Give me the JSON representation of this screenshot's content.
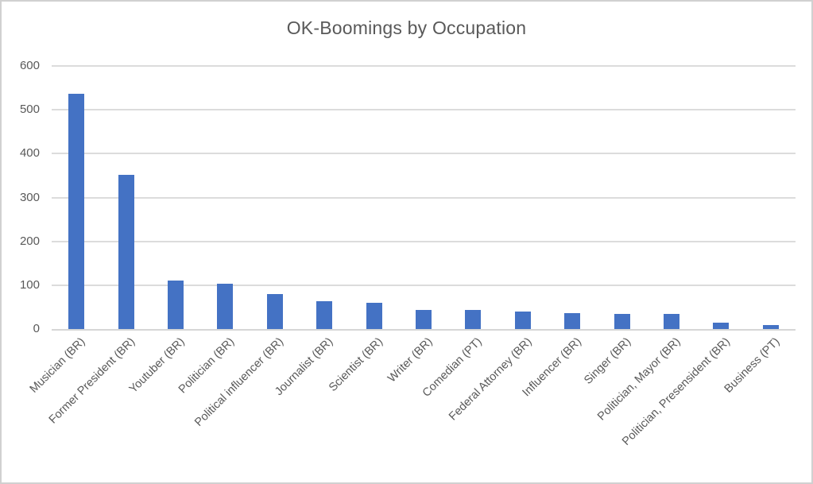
{
  "window": {
    "background": "#ffffff",
    "border_color": "#d0d0d0"
  },
  "chart_data": {
    "type": "bar",
    "title": "OK-Boomings by Occupation",
    "categories": [
      "Musician (BR)",
      "Former President (BR)",
      "Youtuber (BR)",
      "Politician (BR)",
      "Political influencer (BR)",
      "Journalist (BR)",
      "Scientist (BR)",
      "Writer (BR)",
      "Comedian (PT)",
      "Federal Attorney (BR)",
      "Influencer (BR)",
      "Singer (BR)",
      "Politician, Mayor (BR)",
      "Politician, Presensident (BR)",
      "Business (PT)"
    ],
    "values": [
      537,
      352,
      110,
      103,
      80,
      63,
      59,
      43,
      43,
      40,
      36,
      34,
      34,
      15,
      9
    ],
    "xlabel": "",
    "ylabel": "",
    "ylim": [
      0,
      600
    ],
    "yticks": [
      0,
      100,
      200,
      300,
      400,
      500,
      600
    ],
    "grid": true,
    "legend_position": "none",
    "bar_color": "#4472c4",
    "gridline_color": "#dcdcdc",
    "axis_line_color": "#d6d6d6",
    "text_color": "#595959"
  }
}
